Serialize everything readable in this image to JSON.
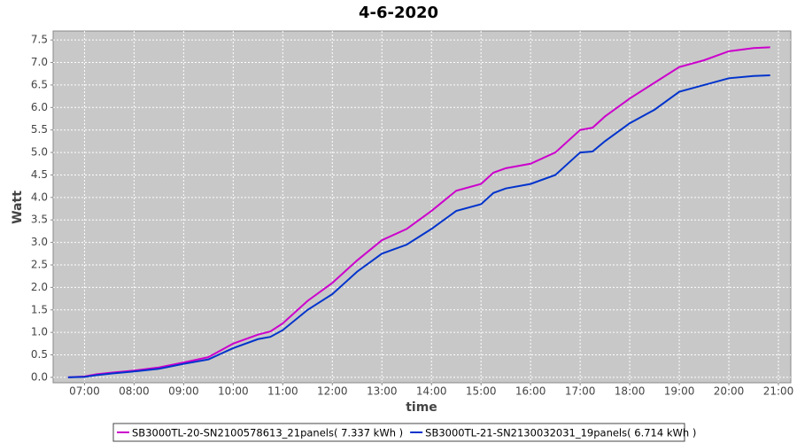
{
  "chart_data": {
    "type": "line",
    "title": "4-6-2020",
    "xlabel": "time",
    "ylabel": "Watt",
    "x": [
      "06:40",
      "07:00",
      "07:15",
      "07:30",
      "08:00",
      "08:30",
      "09:00",
      "09:30",
      "10:00",
      "10:30",
      "10:45",
      "11:00",
      "11:30",
      "12:00",
      "12:30",
      "13:00",
      "13:30",
      "14:00",
      "14:30",
      "15:00",
      "15:15",
      "15:30",
      "16:00",
      "16:30",
      "17:00",
      "17:15",
      "17:30",
      "18:00",
      "18:30",
      "19:00",
      "19:30",
      "20:00",
      "20:30",
      "20:50"
    ],
    "series": [
      {
        "name": "SB3000TL-20-SN2100578613_21panels( 7.337 kWh )",
        "color": "#cc00cc",
        "values": [
          0.0,
          0.02,
          0.07,
          0.1,
          0.15,
          0.22,
          0.33,
          0.45,
          0.75,
          0.95,
          1.02,
          1.2,
          1.7,
          2.1,
          2.6,
          3.05,
          3.3,
          3.7,
          4.15,
          4.3,
          4.55,
          4.65,
          4.75,
          5.0,
          5.5,
          5.55,
          5.8,
          6.2,
          6.55,
          6.9,
          7.05,
          7.25,
          7.32,
          7.337
        ]
      },
      {
        "name": "SB3000TL-21-SN2130032031_19panels( 6.714 kWh )",
        "color": "#0033cc",
        "values": [
          0.0,
          0.01,
          0.05,
          0.08,
          0.13,
          0.19,
          0.3,
          0.4,
          0.65,
          0.85,
          0.9,
          1.05,
          1.5,
          1.85,
          2.35,
          2.75,
          2.95,
          3.3,
          3.7,
          3.85,
          4.1,
          4.2,
          4.3,
          4.5,
          5.0,
          5.02,
          5.25,
          5.65,
          5.95,
          6.35,
          6.5,
          6.65,
          6.7,
          6.714
        ]
      }
    ],
    "xlim": [
      "06:22",
      "21:15"
    ],
    "xticks": [
      "07:00",
      "08:00",
      "09:00",
      "10:00",
      "11:00",
      "12:00",
      "13:00",
      "14:00",
      "15:00",
      "16:00",
      "17:00",
      "18:00",
      "19:00",
      "20:00",
      "21:00"
    ],
    "ylim": [
      -0.12,
      7.7
    ],
    "yticks": [
      {
        "value": 0,
        "label": "0.0"
      },
      0.5,
      {
        "value": 1,
        "label": "1.0"
      },
      1.5,
      {
        "value": 2,
        "label": "2.0"
      },
      2.5,
      {
        "value": 3,
        "label": "3.0"
      },
      3.5,
      {
        "value": 4,
        "label": "4.0"
      },
      4.5,
      {
        "value": 5,
        "label": "5.0"
      },
      5.5,
      {
        "value": 6,
        "label": "6.0"
      },
      6.5,
      {
        "value": 7,
        "label": "7.0"
      },
      7.5
    ],
    "grid": true,
    "legend": "bottom"
  }
}
